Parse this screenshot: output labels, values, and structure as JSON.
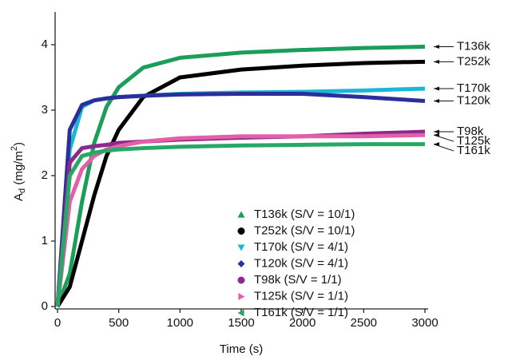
{
  "chart_data": {
    "type": "line",
    "x_label": "Time (s)",
    "y_label": {
      "main": "A",
      "sub": "d",
      "unit": " (mg/m",
      "sup": "2",
      "end": ")"
    },
    "x": [
      0,
      100,
      200,
      300,
      400,
      500,
      700,
      1000,
      1500,
      2000,
      2500,
      3000
    ],
    "xlim": [
      0,
      3000
    ],
    "xticks": [
      0,
      500,
      1000,
      1500,
      2000,
      2500,
      3000
    ],
    "ylim": [
      0,
      4.5
    ],
    "yticks": [
      0,
      1,
      2,
      3,
      4
    ],
    "series": [
      {
        "name": "T136k (S/V = 10/1)",
        "color": "#1a9e5a",
        "marker": "triangle-up",
        "values": [
          0,
          0.5,
          1.6,
          2.5,
          3.05,
          3.35,
          3.65,
          3.8,
          3.88,
          3.92,
          3.95,
          3.97
        ]
      },
      {
        "name": "T252k (S/V = 10/1)",
        "color": "#000000",
        "marker": "circle",
        "values": [
          0,
          0.3,
          1.0,
          1.7,
          2.3,
          2.7,
          3.2,
          3.5,
          3.62,
          3.68,
          3.72,
          3.74
        ]
      },
      {
        "name": "T170k (S/V = 4/1)",
        "color": "#1ab8d8",
        "marker": "triangle-down",
        "values": [
          0,
          2.4,
          3.05,
          3.15,
          3.18,
          3.2,
          3.22,
          3.25,
          3.27,
          3.28,
          3.3,
          3.33
        ]
      },
      {
        "name": "T120k (S/V = 4/1)",
        "color": "#2b2f9a",
        "marker": "diamond",
        "values": [
          0,
          2.7,
          3.08,
          3.15,
          3.18,
          3.2,
          3.22,
          3.24,
          3.25,
          3.25,
          3.2,
          3.14
        ]
      },
      {
        "name": "T98k (S/V = 1/1)",
        "color": "#8b2a8c",
        "marker": "circle",
        "values": [
          0,
          2.2,
          2.42,
          2.45,
          2.47,
          2.5,
          2.52,
          2.55,
          2.58,
          2.6,
          2.64,
          2.67
        ]
      },
      {
        "name": "T125k (S/V = 1/1)",
        "color": "#e55fa8",
        "marker": "triangle-right",
        "values": [
          0,
          1.6,
          2.1,
          2.3,
          2.4,
          2.45,
          2.52,
          2.57,
          2.6,
          2.6,
          2.6,
          2.62
        ]
      },
      {
        "name": "T161k (S/V = 1/1)",
        "color": "#27a867",
        "marker": "triangle-left",
        "values": [
          0,
          2.0,
          2.3,
          2.35,
          2.38,
          2.4,
          2.42,
          2.44,
          2.46,
          2.47,
          2.48,
          2.48
        ]
      }
    ],
    "annotations": [
      "T136k",
      "T252k",
      "T170k",
      "T120k",
      "T98k",
      "T125k",
      "T161k"
    ]
  }
}
